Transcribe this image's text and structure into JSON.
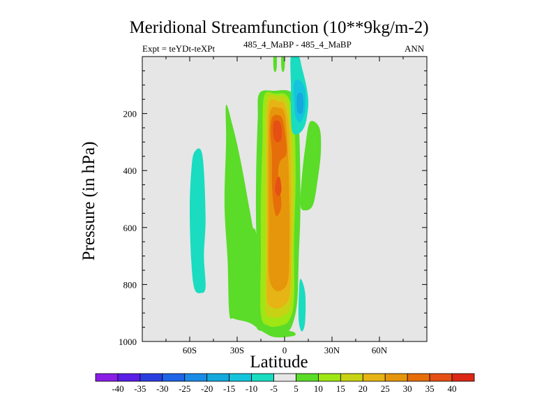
{
  "chart_data": {
    "type": "contour",
    "title": "Meridional Streamfunction (10**9kg/m-2)",
    "subtitle_left": "Expt = teYDt-teXPt",
    "subtitle_center": "485_4_MaBP - 485_4_MaBP",
    "subtitle_right": "ANN",
    "xlabel": "Latitude",
    "ylabel": "Pressure (in hPa)",
    "xlim": [
      -90,
      90
    ],
    "ylim": [
      1000,
      0
    ],
    "xticks": [
      {
        "value": -60,
        "label": "60S"
      },
      {
        "value": -30,
        "label": "30S"
      },
      {
        "value": 0,
        "label": "0"
      },
      {
        "value": 30,
        "label": "30N"
      },
      {
        "value": 60,
        "label": "60N"
      }
    ],
    "yticks": [
      {
        "value": 200,
        "label": "200"
      },
      {
        "value": 400,
        "label": "400"
      },
      {
        "value": 600,
        "label": "600"
      },
      {
        "value": 800,
        "label": "800"
      },
      {
        "value": 1000,
        "label": "1000"
      }
    ],
    "colorbar": {
      "levels": [
        "-40",
        "-35",
        "-30",
        "-25",
        "-20",
        "-15",
        "-10",
        "-5",
        "5",
        "10",
        "15",
        "20",
        "25",
        "30",
        "35",
        "40"
      ],
      "colors": [
        "#8a1ee6",
        "#5a1ee6",
        "#2a3ee0",
        "#1e64e6",
        "#1a8ce6",
        "#14a8dc",
        "#14c4dc",
        "#19dcc0",
        "#e6e6e6",
        "#5adc28",
        "#9ee614",
        "#c8d214",
        "#e6b414",
        "#e6960a",
        "#e66e0a",
        "#e65014",
        "#dc2814"
      ]
    },
    "regions": [
      {
        "name": "negative-band-60S",
        "level": "-10 to -5",
        "color": "#19dcc0",
        "points": [
          [
            -57,
            335
          ],
          [
            -52,
            345
          ],
          [
            -50,
            560
          ],
          [
            -51,
            700
          ],
          [
            -50,
            810
          ],
          [
            -53,
            830
          ],
          [
            -57,
            815
          ],
          [
            -59,
            720
          ],
          [
            -60,
            540
          ],
          [
            -59,
            400
          ]
        ]
      },
      {
        "name": "positive-lobe-35S",
        "level": "5 to 10",
        "color": "#5adc28",
        "points": [
          [
            -37,
            170
          ],
          [
            -33,
            240
          ],
          [
            -28,
            360
          ],
          [
            -22,
            540
          ],
          [
            -20,
            600
          ],
          [
            -18,
            620
          ],
          [
            -14,
            780
          ],
          [
            -15,
            930
          ],
          [
            -12,
            950
          ],
          [
            -6,
            960
          ],
          [
            5,
            965
          ],
          [
            6,
            980
          ],
          [
            -6,
            985
          ],
          [
            -14,
            965
          ],
          [
            -22,
            935
          ],
          [
            -32,
            920
          ],
          [
            -35,
            900
          ],
          [
            -36,
            720
          ],
          [
            -38,
            520
          ],
          [
            -37,
            300
          ]
        ]
      },
      {
        "name": "positive-core-outer",
        "level": "5 to 10",
        "color": "#5adc28",
        "points": [
          [
            -16,
            130
          ],
          [
            -7,
            120
          ],
          [
            5,
            130
          ],
          [
            9,
            240
          ],
          [
            10,
            520
          ],
          [
            9,
            700
          ],
          [
            8,
            860
          ],
          [
            5,
            940
          ],
          [
            1,
            970
          ],
          [
            -6,
            980
          ],
          [
            -13,
            965
          ],
          [
            -18,
            940
          ],
          [
            -17,
            780
          ],
          [
            -18,
            600
          ],
          [
            -18,
            420
          ],
          [
            -17,
            220
          ]
        ]
      },
      {
        "name": "positive-core-10",
        "level": "10 to 15",
        "color": "#9ee614",
        "points": [
          [
            -13,
            140
          ],
          [
            -6,
            130
          ],
          [
            2,
            140
          ],
          [
            6,
            230
          ],
          [
            7,
            420
          ],
          [
            6,
            650
          ],
          [
            6,
            850
          ],
          [
            3,
            925
          ],
          [
            -3,
            945
          ],
          [
            -10,
            945
          ],
          [
            -15,
            905
          ],
          [
            -15,
            700
          ],
          [
            -15,
            500
          ],
          [
            -14,
            300
          ]
        ]
      },
      {
        "name": "positive-core-15",
        "level": "15 to 20",
        "color": "#c8d214",
        "points": [
          [
            -11,
            150
          ],
          [
            -5,
            140
          ],
          [
            1,
            150
          ],
          [
            4,
            240
          ],
          [
            6,
            440
          ],
          [
            5,
            700
          ],
          [
            4,
            870
          ],
          [
            -1,
            910
          ],
          [
            -8,
            915
          ],
          [
            -12,
            890
          ],
          [
            -12,
            720
          ],
          [
            -12,
            520
          ],
          [
            -12,
            330
          ]
        ]
      },
      {
        "name": "positive-core-20",
        "level": "20 to 25",
        "color": "#e6b414",
        "points": [
          [
            -10,
            165
          ],
          [
            -4,
            158
          ],
          [
            0,
            170
          ],
          [
            3,
            260
          ],
          [
            4,
            460
          ],
          [
            4,
            700
          ],
          [
            3,
            840
          ],
          [
            -2,
            880
          ],
          [
            -8,
            880
          ],
          [
            -11,
            850
          ],
          [
            -11,
            700
          ],
          [
            -11,
            520
          ],
          [
            -11,
            330
          ]
        ]
      },
      {
        "name": "positive-core-25",
        "level": "25 to 30",
        "color": "#e6960a",
        "points": [
          [
            -9,
            190
          ],
          [
            -4,
            180
          ],
          [
            0,
            200
          ],
          [
            2,
            320
          ],
          [
            3,
            520
          ],
          [
            3,
            700
          ],
          [
            2,
            790
          ],
          [
            -2,
            820
          ],
          [
            -7,
            815
          ],
          [
            -10,
            760
          ],
          [
            -10,
            600
          ],
          [
            -10,
            450
          ],
          [
            -10,
            300
          ]
        ]
      },
      {
        "name": "positive-core-30",
        "level": "30 to 35",
        "color": "#e66e0a",
        "points": [
          [
            -8,
            215
          ],
          [
            -4,
            205
          ],
          [
            -1,
            225
          ],
          [
            1,
            300
          ],
          [
            1,
            345
          ],
          [
            -3,
            370
          ],
          [
            -4,
            420
          ],
          [
            -2,
            520
          ],
          [
            -5,
            560
          ],
          [
            -7,
            520
          ],
          [
            -8,
            440
          ],
          [
            -8,
            340
          ],
          [
            -9,
            270
          ]
        ]
      },
      {
        "name": "positive-core-35a",
        "level": "35 to 40",
        "color": "#e65014",
        "points": [
          [
            -7,
            232
          ],
          [
            -4,
            225
          ],
          [
            -2,
            245
          ],
          [
            -2,
            290
          ],
          [
            -5,
            300
          ],
          [
            -7,
            280
          ]
        ]
      },
      {
        "name": "positive-core-35b",
        "level": "35 to 40",
        "color": "#e65014",
        "points": [
          [
            -5,
            430
          ],
          [
            -3,
            425
          ],
          [
            -2,
            470
          ],
          [
            -4,
            490
          ],
          [
            -6,
            470
          ]
        ]
      },
      {
        "name": "upper-positive-sliver-a",
        "level": "5 to 10",
        "color": "#5adc28",
        "points": [
          [
            -7,
            0
          ],
          [
            -5,
            0
          ],
          [
            -5,
            40
          ],
          [
            -6,
            55
          ],
          [
            -7,
            40
          ]
        ]
      },
      {
        "name": "upper-positive-sliver-b",
        "level": "5 to 10",
        "color": "#5adc28",
        "points": [
          [
            -2,
            0
          ],
          [
            0,
            0
          ],
          [
            0,
            40
          ],
          [
            -1,
            55
          ],
          [
            -2,
            40
          ]
        ]
      },
      {
        "name": "upper-negative-outer",
        "level": "-10 to -5",
        "color": "#19dcc0",
        "points": [
          [
            4,
            0
          ],
          [
            9,
            0
          ],
          [
            11,
            40
          ],
          [
            14,
            110
          ],
          [
            15,
            170
          ],
          [
            13,
            240
          ],
          [
            9,
            270
          ],
          [
            5,
            265
          ],
          [
            4,
            200
          ],
          [
            4,
            100
          ]
        ]
      },
      {
        "name": "upper-negative-mid",
        "level": "-15 to -10",
        "color": "#14c4dc",
        "points": [
          [
            6,
            90
          ],
          [
            10,
            85
          ],
          [
            13,
            120
          ],
          [
            13,
            190
          ],
          [
            10,
            230
          ],
          [
            7,
            210
          ],
          [
            6,
            150
          ]
        ]
      },
      {
        "name": "upper-negative-core",
        "level": "-20 to -15",
        "color": "#14a8dc",
        "points": [
          [
            8,
            135
          ],
          [
            11,
            130
          ],
          [
            12,
            165
          ],
          [
            11,
            200
          ],
          [
            8,
            190
          ]
        ]
      },
      {
        "name": "positive-lobe-20N",
        "level": "5 to 10",
        "color": "#5adc28",
        "points": [
          [
            16,
            230
          ],
          [
            22,
            250
          ],
          [
            23,
            330
          ],
          [
            21,
            430
          ],
          [
            18,
            520
          ],
          [
            13,
            540
          ],
          [
            10,
            520
          ],
          [
            11,
            420
          ],
          [
            13,
            320
          ]
        ]
      },
      {
        "name": "negative-blob-10N",
        "level": "-10 to -5",
        "color": "#19dcc0",
        "points": [
          [
            10,
            780
          ],
          [
            13,
            830
          ],
          [
            13,
            930
          ],
          [
            11,
            965
          ],
          [
            9,
            930
          ],
          [
            9,
            840
          ]
        ]
      }
    ]
  }
}
